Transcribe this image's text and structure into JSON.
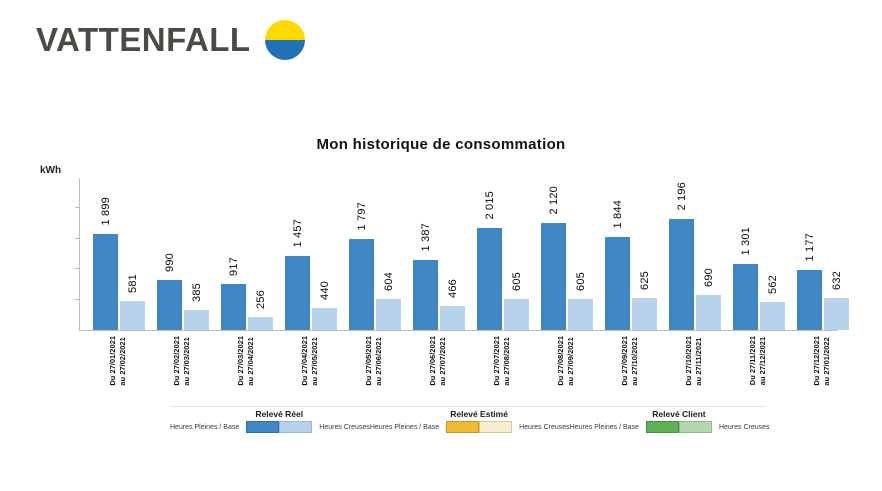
{
  "brand": {
    "logo_text": "VATTENFALL"
  },
  "chart_data": {
    "type": "bar",
    "title": "Mon historique de consommation",
    "ylabel": "kWh",
    "xlabel": "",
    "grid": false,
    "legend_position": "bottom",
    "ylim": [
      0,
      3000
    ],
    "categories": [
      {
        "line1": "Du 27/01/2021",
        "line2": "au 27/02/2021"
      },
      {
        "line1": "Du 27/02/2021",
        "line2": "au 27/03/2021"
      },
      {
        "line1": "Du 27/03/2021",
        "line2": "au 27/04/2021"
      },
      {
        "line1": "Du 27/04/2021",
        "line2": "au 27/05/2021"
      },
      {
        "line1": "Du 27/05/2021",
        "line2": "au 27/06/2021"
      },
      {
        "line1": "Du 27/06/2021",
        "line2": "au 27/07/2021"
      },
      {
        "line1": "Du 27/07/2021",
        "line2": "au 27/08/2021"
      },
      {
        "line1": "Du 27/08/2021",
        "line2": "au 27/09/2021"
      },
      {
        "line1": "Du 27/09/2021",
        "line2": "au 27/10/2021"
      },
      {
        "line1": "Du 27/10/2021",
        "line2": "au 27/11/2021"
      },
      {
        "line1": "Du 27/11/2021",
        "line2": "au 27/12/2021"
      },
      {
        "line1": "Du 27/12/2021",
        "line2": "au 27/01/2022"
      }
    ],
    "series": [
      {
        "name": "Heures Pleines / Base",
        "color": "#3f88c5",
        "values": [
          1899,
          990,
          917,
          1457,
          1797,
          1387,
          2015,
          2120,
          1844,
          2196,
          1301,
          1177
        ],
        "labels": [
          "1 899",
          "990",
          "917",
          "1 457",
          "1 797",
          "1 387",
          "2 015",
          "2 120",
          "1 844",
          "2 196",
          "1 301",
          "1 177"
        ]
      },
      {
        "name": "Heures Creuses",
        "color": "#b7d3ec",
        "values": [
          581,
          385,
          256,
          440,
          604,
          466,
          605,
          605,
          625,
          690,
          562,
          632
        ],
        "labels": [
          "581",
          "385",
          "256",
          "440",
          "604",
          "466",
          "605",
          "605",
          "625",
          "690",
          "562",
          "632"
        ]
      }
    ],
    "legend": [
      {
        "title": "Relevé Réel",
        "left_label": "Heures Pleines / Base",
        "right_label": "Heures Creuses",
        "swatches": [
          {
            "name": "heures-pleines-reel",
            "color": "#3f88c5",
            "border": "#2e6ea8"
          },
          {
            "name": "heures-creuses-reel",
            "color": "#b7d3ec",
            "border": "#94bbdf"
          }
        ]
      },
      {
        "title": "Relevé Estimé",
        "left_label": "Heures Pleines / Base",
        "right_label": "Heures Creuses",
        "swatches": [
          {
            "name": "heures-pleines-estime",
            "color": "#eebb33",
            "border": "#c79a1f"
          },
          {
            "name": "heures-creuses-estime",
            "color": "#f9eecd",
            "border": "#d9c69a"
          }
        ]
      },
      {
        "title": "Relevé Client",
        "left_label": "Heures Pleines / Base",
        "right_label": "Heures Creuses",
        "swatches": [
          {
            "name": "heures-pleines-client",
            "color": "#5fb256",
            "border": "#46913f"
          },
          {
            "name": "heures-creuses-client",
            "color": "#b5d6af",
            "border": "#8fbc88"
          }
        ]
      }
    ]
  }
}
